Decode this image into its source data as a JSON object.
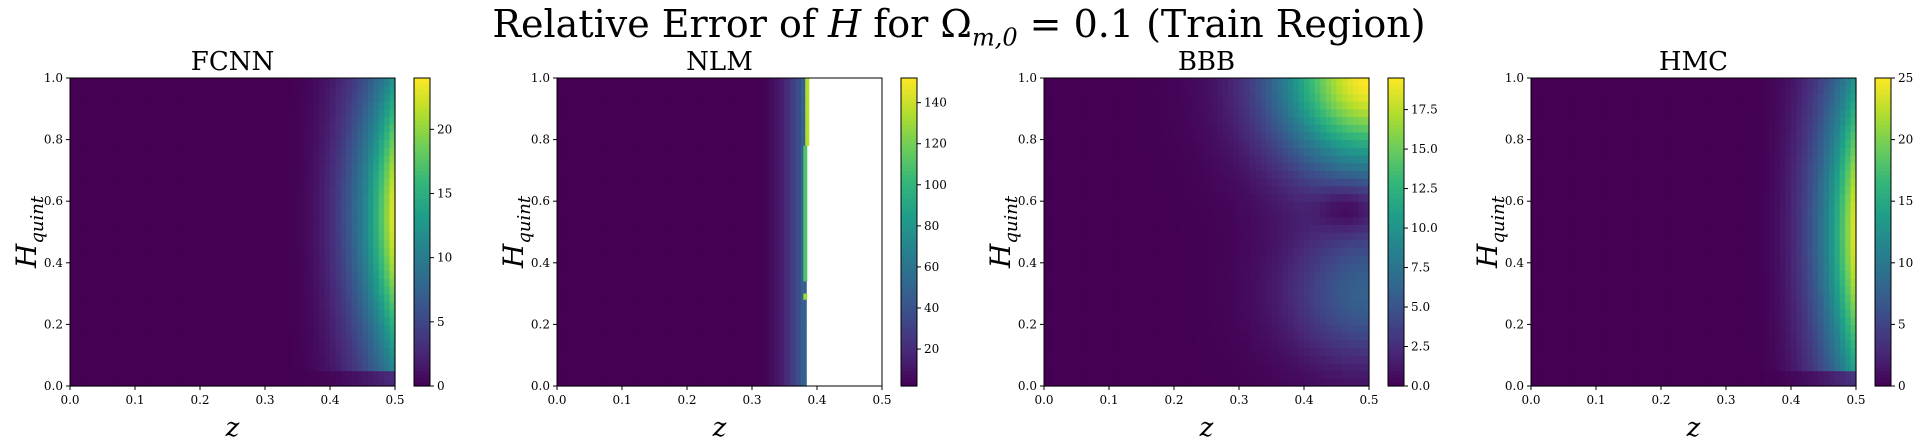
{
  "figure": {
    "title_prefix": "Relative Error of ",
    "title_var": "H",
    "title_mid": " for Ω",
    "title_sub": "m,0",
    "title_suffix": " = 0.1 (Train Region)"
  },
  "chart_data": [
    {
      "type": "heatmap",
      "title": "FCNN",
      "xlabel": "z",
      "ylabel_main": "H",
      "ylabel_sub": "quint",
      "xlim": [
        0,
        0.5
      ],
      "ylim": [
        0,
        1
      ],
      "xticks": [
        "0.0",
        "0.1",
        "0.2",
        "0.3",
        "0.4",
        "0.5"
      ],
      "yticks": [
        "0.0",
        "0.2",
        "0.4",
        "0.6",
        "0.8",
        "1.0"
      ],
      "colorbar": {
        "min": 0,
        "max": 24,
        "ticks": [
          0,
          5,
          10,
          15,
          20
        ],
        "tick_labels": [
          "0",
          "5",
          "10",
          "15",
          "20"
        ]
      },
      "field": {
        "shape": "edge-bulge",
        "start": 0.32,
        "peak": 24,
        "ycenter": 0.55,
        "yspread": 0.45
      }
    },
    {
      "type": "heatmap",
      "title": "NLM",
      "xlabel": "z",
      "ylabel_main": "H",
      "ylabel_sub": "quint",
      "xlim": [
        0,
        0.5
      ],
      "ylim": [
        0,
        1
      ],
      "xticks": [
        "0.0",
        "0.1",
        "0.2",
        "0.3",
        "0.4",
        "0.5"
      ],
      "yticks": [
        "0.0",
        "0.2",
        "0.4",
        "0.6",
        "0.8",
        "1.0"
      ],
      "colorbar": {
        "min": 2,
        "max": 152,
        "ticks": [
          20,
          40,
          60,
          80,
          100,
          120,
          140
        ],
        "tick_labels": [
          "20",
          "40",
          "60",
          "80",
          "100",
          "120",
          "140"
        ]
      },
      "field": {
        "shape": "cutoff",
        "start": 0.3,
        "cutoff": 0.385,
        "peak": 55
      },
      "high_streaks": [
        {
          "x": 0.385,
          "y0": 0.78,
          "y1": 1.0,
          "value": 135
        },
        {
          "x": 0.382,
          "y0": 0.34,
          "y1": 0.78,
          "value": 110
        },
        {
          "x": 0.382,
          "y0": 0.28,
          "y1": 0.3,
          "value": 130
        }
      ]
    },
    {
      "type": "heatmap",
      "title": "BBB",
      "xlabel": "z",
      "ylabel_main": "H",
      "ylabel_sub": "quint",
      "xlim": [
        0,
        0.5
      ],
      "ylim": [
        0,
        1
      ],
      "xticks": [
        "0.0",
        "0.1",
        "0.2",
        "0.3",
        "0.4",
        "0.5"
      ],
      "yticks": [
        "0.0",
        "0.2",
        "0.4",
        "0.6",
        "0.8",
        "1.0"
      ],
      "colorbar": {
        "min": 0,
        "max": 19.5,
        "ticks": [
          0,
          2.5,
          5,
          7.5,
          10,
          12.5,
          15,
          17.5
        ],
        "tick_labels": [
          "0.0",
          "2.5",
          "5.0",
          "7.5",
          "10.0",
          "12.5",
          "15.0",
          "17.5"
        ]
      },
      "field": {
        "shape": "corner",
        "peak": 19.5
      }
    },
    {
      "type": "heatmap",
      "title": "HMC",
      "xlabel": "z",
      "ylabel_main": "H",
      "ylabel_sub": "quint",
      "xlim": [
        0,
        0.5
      ],
      "ylim": [
        0,
        1
      ],
      "xticks": [
        "0.0",
        "0.1",
        "0.2",
        "0.3",
        "0.4",
        "0.5"
      ],
      "yticks": [
        "0.0",
        "0.2",
        "0.4",
        "0.6",
        "0.8",
        "1.0"
      ],
      "colorbar": {
        "min": 0,
        "max": 25,
        "ticks": [
          0,
          5,
          10,
          15,
          20,
          25
        ],
        "tick_labels": [
          "0",
          "5",
          "10",
          "15",
          "20",
          "25"
        ]
      },
      "field": {
        "shape": "edge-bulge",
        "start": 0.33,
        "peak": 25,
        "ycenter": 0.5,
        "yspread": 0.5
      }
    }
  ]
}
